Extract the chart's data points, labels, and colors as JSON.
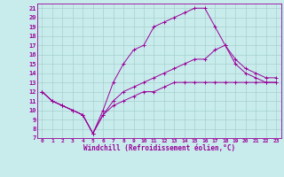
{
  "xlabel": "Windchill (Refroidissement éolien,°C)",
  "bg_color": "#c8ecec",
  "grid_color": "#a8cece",
  "line_color": "#990099",
  "xlim": [
    -0.5,
    23.5
  ],
  "ylim": [
    7,
    21.5
  ],
  "xticks": [
    0,
    1,
    2,
    3,
    4,
    5,
    6,
    7,
    8,
    9,
    10,
    11,
    12,
    13,
    14,
    15,
    16,
    17,
    18,
    19,
    20,
    21,
    22,
    23
  ],
  "yticks": [
    7,
    8,
    9,
    10,
    11,
    12,
    13,
    14,
    15,
    16,
    17,
    18,
    19,
    20,
    21
  ],
  "lines": [
    {
      "x": [
        0,
        1,
        2,
        3,
        4,
        5,
        6,
        7,
        8,
        9,
        10,
        11,
        12,
        13,
        14,
        15,
        16,
        17,
        18,
        19,
        20,
        21,
        22,
        23
      ],
      "y": [
        12,
        11,
        10.5,
        10,
        9.5,
        7.5,
        10,
        13,
        15,
        16.5,
        17,
        19,
        19.5,
        20,
        20.5,
        21,
        21,
        19,
        17,
        15,
        14,
        13.5,
        13,
        13
      ]
    },
    {
      "x": [
        0,
        1,
        2,
        3,
        4,
        5,
        6,
        7,
        8,
        9,
        10,
        11,
        12,
        13,
        14,
        15,
        16,
        17,
        18,
        19,
        20,
        21,
        22,
        23
      ],
      "y": [
        12,
        11,
        10.5,
        10,
        9.5,
        7.5,
        9.5,
        11,
        12,
        12.5,
        13,
        13.5,
        14,
        14.5,
        15,
        15.5,
        15.5,
        16.5,
        17,
        15.5,
        14.5,
        14,
        13.5,
        13.5
      ]
    },
    {
      "x": [
        0,
        1,
        2,
        3,
        4,
        5,
        6,
        7,
        8,
        9,
        10,
        11,
        12,
        13,
        14,
        15,
        16,
        17,
        18,
        19,
        20,
        21,
        22,
        23
      ],
      "y": [
        12,
        11,
        10.5,
        10,
        9.5,
        7.5,
        9.5,
        10.5,
        11,
        11.5,
        12,
        12,
        12.5,
        13,
        13,
        13,
        13,
        13,
        13,
        13,
        13,
        13,
        13,
        13
      ]
    }
  ]
}
